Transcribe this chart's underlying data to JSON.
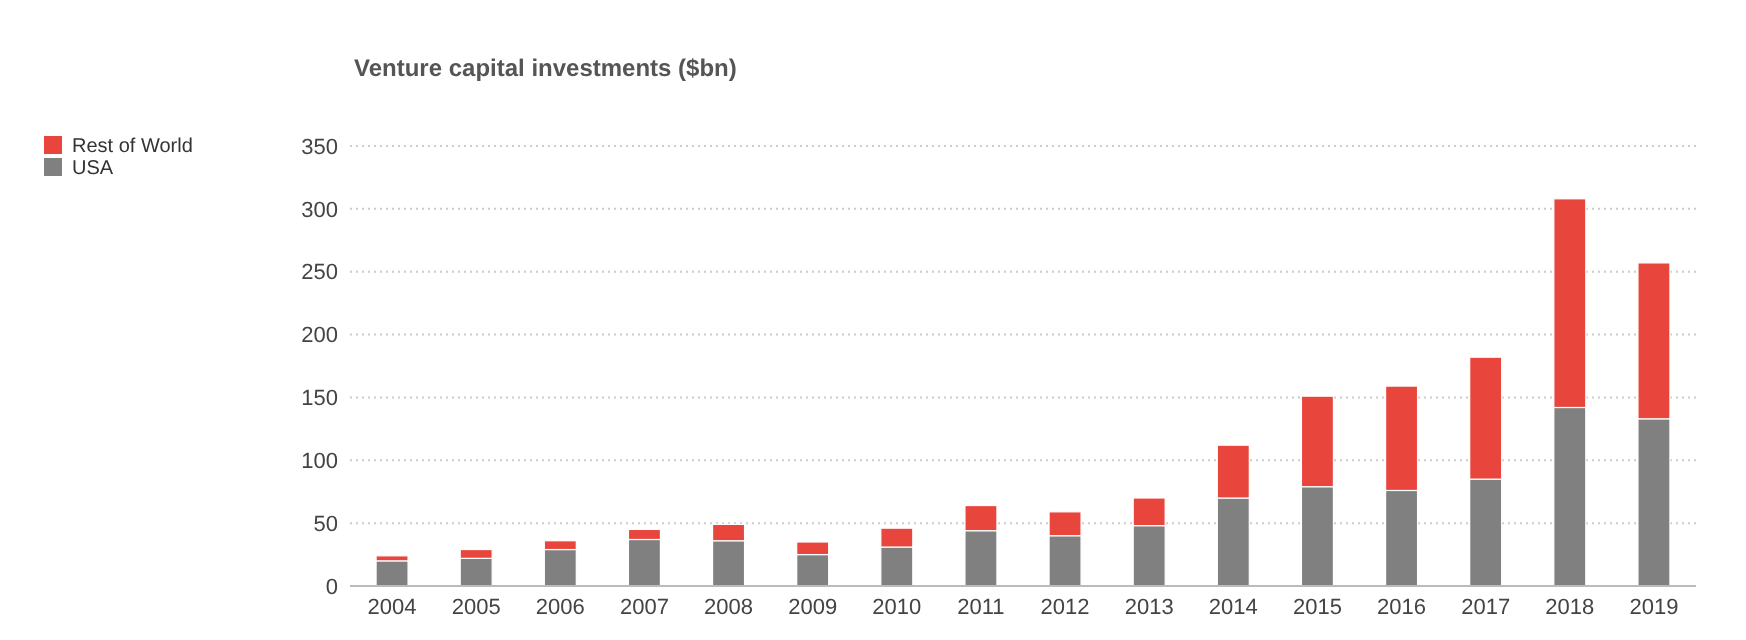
{
  "chart_data": {
    "type": "bar",
    "title": "Venture capital investments ($bn)",
    "categories": [
      "2004",
      "2005",
      "2006",
      "2007",
      "2008",
      "2009",
      "2010",
      "2011",
      "2012",
      "2013",
      "2014",
      "2015",
      "2016",
      "2017",
      "2018",
      "2019"
    ],
    "stacked": true,
    "series": [
      {
        "name": "USA",
        "color": "#808080",
        "values": [
          20,
          22,
          29,
          37,
          36,
          25,
          31,
          44,
          40,
          48,
          70,
          79,
          76,
          85,
          142,
          133
        ]
      },
      {
        "name": "Rest of World",
        "color": "#e8453c",
        "values": [
          4,
          7,
          7,
          8,
          13,
          10,
          15,
          20,
          19,
          22,
          42,
          72,
          83,
          97,
          166,
          124
        ]
      }
    ],
    "ylim": [
      0,
      350
    ],
    "yticks": [
      0,
      50,
      100,
      150,
      200,
      250,
      300,
      350
    ],
    "grid": "y",
    "legend": "left"
  }
}
